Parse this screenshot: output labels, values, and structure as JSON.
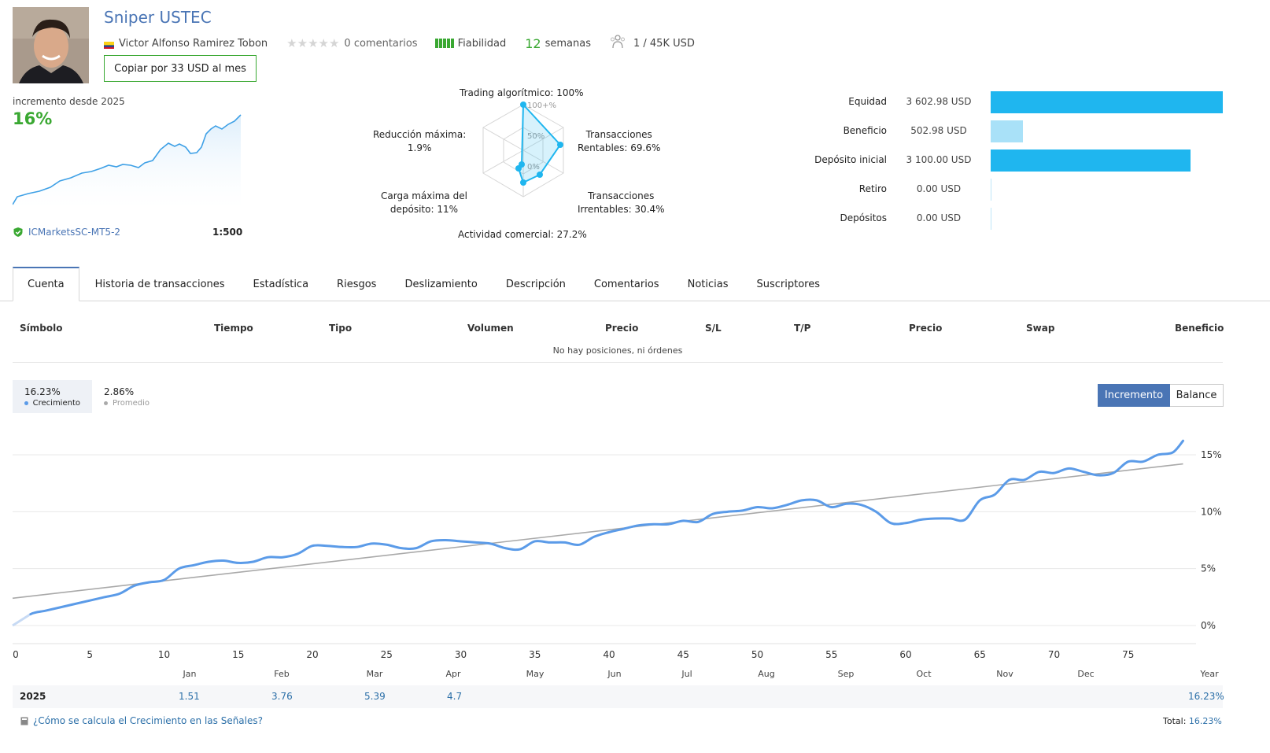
{
  "header": {
    "title": "Sniper USTEC",
    "author": "Victor Alfonso Ramirez Tobon",
    "comments": "0 comentarios",
    "reliability": "Fiabilidad",
    "weeks_num": "12",
    "weeks_label": "semanas",
    "subscribers": "1 / 45K USD",
    "copy_button": "Copiar por 33 USD al mes",
    "rating_stars": 0,
    "reliability_bars": 5,
    "colors": {
      "title": "#4a75b5",
      "green": "#3aa832"
    }
  },
  "growth": {
    "label": "incremento desde 2025",
    "value": "16%",
    "broker": "ICMarketsSC-MT5-2",
    "leverage": "1:500"
  },
  "radar": {
    "axis_labels": [
      "100+%",
      "50%",
      "0%"
    ],
    "algo_trading": "Trading algorítmico: 100%",
    "profit_trades_l1": "Transacciones",
    "profit_trades_l2": "Rentables: 69.6%",
    "loss_trades_l1": "Transacciones",
    "loss_trades_l2": "Irrentables: 30.4%",
    "activity": "Actividad comercial: 27.2%",
    "max_load_l1": "Carga máxima del",
    "max_load_l2": "depósito: 11%",
    "max_dd_l1": "Reducción máxima:",
    "max_dd_l2": "1.9%",
    "values_pct": [
      100,
      69.6,
      30.4,
      27.2,
      11,
      1.9
    ]
  },
  "finance": [
    {
      "label": "Equidad",
      "value": "3 602.98 USD",
      "amount": 3602.98
    },
    {
      "label": "Beneficio",
      "value": "502.98 USD",
      "amount": 502.98,
      "light": true
    },
    {
      "label": "Depósito inicial",
      "value": "3 100.00 USD",
      "amount": 3100.0
    },
    {
      "label": "Retiro",
      "value": "0.00 USD",
      "amount": 0
    },
    {
      "label": "Depósitos",
      "value": "0.00 USD",
      "amount": 0
    }
  ],
  "tabs": [
    "Cuenta",
    "Historia de transacciones",
    "Estadística",
    "Riesgos",
    "Deslizamiento",
    "Descripción",
    "Comentarios",
    "Noticias",
    "Suscriptores"
  ],
  "table": {
    "headers": [
      "Símbolo",
      "Tiempo",
      "Tipo",
      "Volumen",
      "Precio",
      "S/L",
      "T/P",
      "Precio",
      "Swap",
      "Beneficio"
    ],
    "empty": "No hay posiciones, ni órdenes"
  },
  "series_pills": {
    "growth_value": "16.23%",
    "growth_label": "Crecimiento",
    "avg_value": "2.86%",
    "avg_label": "Promedio"
  },
  "toggle": {
    "active": "Incremento",
    "inactive": "Balance"
  },
  "chart_data": {
    "type": "line",
    "y_ticks": [
      "15%",
      "10%",
      "5%",
      "0%"
    ],
    "ylim": [
      -1.2,
      17
    ],
    "xlim": [
      0,
      80
    ],
    "x_ticks": [
      0,
      5,
      10,
      15,
      20,
      25,
      30,
      35,
      40,
      45,
      50,
      55,
      60,
      65,
      70,
      75
    ],
    "month_labels": [
      "Jan",
      "Feb",
      "Mar",
      "Apr",
      "May",
      "Jun",
      "Jul",
      "Aug",
      "Sep",
      "Oct",
      "Nov",
      "Dec",
      "Year"
    ],
    "series": [
      {
        "name": "Crecimiento",
        "color": "#5b9be8",
        "x": [
          0,
          1,
          2,
          3,
          4,
          5,
          6,
          7,
          8,
          9,
          10,
          11,
          12,
          13,
          14,
          15,
          16,
          17,
          18,
          19,
          20,
          21,
          22,
          23,
          24,
          25,
          26,
          27,
          28,
          29,
          30,
          31,
          32,
          33,
          34,
          35,
          36,
          37,
          38,
          39,
          40,
          41,
          42,
          43,
          44,
          45,
          46,
          47,
          48,
          49,
          50,
          51,
          52,
          53,
          54,
          55,
          56,
          57,
          58,
          59,
          60,
          61,
          62,
          63,
          64,
          65,
          66,
          67,
          68,
          69,
          70,
          71,
          72,
          73,
          74,
          75,
          76,
          77,
          78,
          78.7
        ],
        "y": [
          0,
          1.0,
          1.3,
          1.6,
          1.9,
          2.2,
          2.5,
          2.8,
          3.5,
          3.8,
          4.0,
          5.0,
          5.3,
          5.6,
          5.7,
          5.5,
          5.6,
          6.0,
          6.0,
          6.3,
          7.0,
          7.0,
          6.9,
          6.9,
          7.2,
          7.1,
          6.8,
          6.8,
          7.4,
          7.5,
          7.4,
          7.3,
          7.2,
          6.8,
          6.7,
          7.4,
          7.3,
          7.3,
          7.1,
          7.8,
          8.2,
          8.5,
          8.8,
          8.9,
          8.9,
          9.2,
          9.1,
          9.8,
          10.0,
          10.1,
          10.4,
          10.3,
          10.6,
          11.0,
          11.0,
          10.4,
          10.7,
          10.6,
          10.0,
          9.0,
          9.0,
          9.3,
          9.4,
          9.4,
          9.3,
          11.0,
          11.5,
          12.8,
          12.8,
          13.5,
          13.4,
          13.8,
          13.5,
          13.2,
          13.4,
          14.4,
          14.4,
          15.0,
          15.2,
          16.23
        ]
      },
      {
        "name": "Promedio",
        "color": "#a9a9a9",
        "x": [
          0,
          78.7
        ],
        "y": [
          2.4,
          14.2
        ]
      }
    ]
  },
  "year_row": {
    "year": "2025",
    "months": [
      "1.51",
      "3.76",
      "5.39",
      "4.7"
    ],
    "total": "16.23%"
  },
  "footer": {
    "link": "¿Cómo se calcula el Crecimiento en las Señales?",
    "total_label": "Total:",
    "total_value": "16.23%"
  }
}
